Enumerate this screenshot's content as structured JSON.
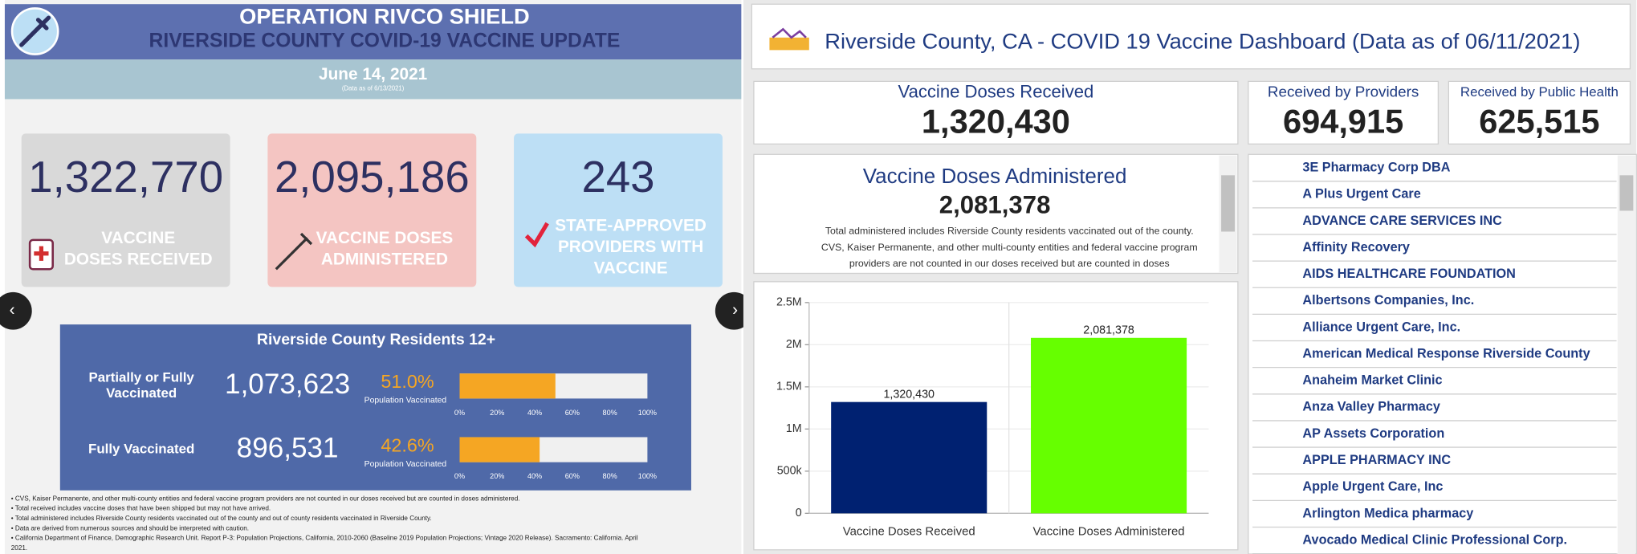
{
  "left": {
    "header": {
      "title": "OPERATION RIVCO SHIELD",
      "subtitle": "RIVERSIDE COUNTY COVID-19 VACCINE UPDATE",
      "date": "June 14, 2021",
      "date_note": "(Data as of 6/13/2021)"
    },
    "cards": [
      {
        "value": "1,322,770",
        "label": [
          "VACCINE",
          "DOSES RECEIVED"
        ]
      },
      {
        "value": "2,095,186",
        "label": [
          "VACCINE DOSES",
          "ADMINISTERED"
        ]
      },
      {
        "value": "243",
        "label": [
          "STATE-APPROVED",
          "PROVIDERS WITH",
          "VACCINE"
        ]
      }
    ],
    "residents": {
      "title": "Riverside County Residents 12+",
      "axis_ticks": [
        {
          "value": 0,
          "label": "0%"
        },
        {
          "value": 20,
          "label": "20%"
        },
        {
          "value": 40,
          "label": "40%"
        },
        {
          "value": 60,
          "label": "60%"
        },
        {
          "value": 80,
          "label": "80%"
        },
        {
          "value": 100,
          "label": "100%"
        }
      ],
      "rows": [
        {
          "label": [
            "Partially or Fully",
            "Vaccinated"
          ],
          "count": "1,073,623",
          "pct": 51.0,
          "pct_label": "51.0%",
          "note": "Population Vaccinated"
        },
        {
          "label": [
            "Fully Vaccinated"
          ],
          "count": "896,531",
          "pct": 42.6,
          "pct_label": "42.6%",
          "note": "Population Vaccinated"
        }
      ]
    },
    "footnotes": [
      "• CVS, Kaiser Permanente, and other multi-county entities and federal vaccine program providers are not counted in our doses received but are counted in doses administered.",
      "• Total received includes vaccine doses that have been shipped but may not have arrived.",
      "• Total administered includes Riverside County residents vaccinated out of the county and out of county residents vaccinated in Riverside County.",
      "• Data are derived from numerous sources and should be interpreted with caution.",
      "• California Department of Finance, Demographic Research Unit. Report P-3: Population Projections, California, 2010-2060 (Baseline 2019 Population Projections; Vintage 2020 Release). Sacramento: California. April",
      "2021."
    ]
  },
  "right": {
    "header": "Riverside County, CA - COVID 19 Vaccine Dashboard (Data as of 06/11/2021)",
    "kpis": [
      {
        "title": "Vaccine Doses Received",
        "value": "1,320,430"
      },
      {
        "title": "Received by Providers",
        "value": "694,915"
      },
      {
        "title": "Received by Public Health",
        "value": "625,515"
      }
    ],
    "administered": {
      "title": "Vaccine Doses Administered",
      "value": "2,081,378",
      "note": [
        "Total administered includes Riverside County residents vaccinated out of the county.",
        "CVS, Kaiser Permanente, and other multi-county entities and federal vaccine program",
        "providers are not counted in our doses received but are counted in doses"
      ]
    },
    "providers": [
      "3E Pharmacy Corp DBA",
      "A Plus Urgent Care",
      "ADVANCE CARE SERVICES INC",
      "Affinity Recovery",
      "AIDS HEALTHCARE FOUNDATION",
      "Albertsons Companies, Inc.",
      "Alliance Urgent Care, Inc.",
      "American Medical Response Riverside County",
      "Anaheim Market Clinic",
      "Anza Valley Pharmacy",
      "AP Assets Corporation",
      "APPLE PHARMACY INC",
      "Apple Urgent Care, Inc",
      "Arlington Medica pharmacy",
      "Avocado Medical Clinic Professional Corp."
    ]
  },
  "chart_data": {
    "type": "bar",
    "categories": [
      "Vaccine Doses Received",
      "Vaccine Doses Administered"
    ],
    "values": [
      1320430,
      2081378
    ],
    "value_labels": [
      "1,320,430",
      "2,081,378"
    ],
    "colors": [
      "#002171",
      "#66ff00"
    ],
    "ylim": [
      0,
      2500000
    ],
    "yticks": [
      0,
      {
        "value": 500000,
        "label": "500k"
      },
      {
        "value": 1000000,
        "label": "1M"
      },
      {
        "value": 1500000,
        "label": "1.5M"
      },
      {
        "value": 2000000,
        "label": "2M"
      },
      {
        "value": 2500000,
        "label": "2.5M"
      }
    ],
    "grid": true
  }
}
